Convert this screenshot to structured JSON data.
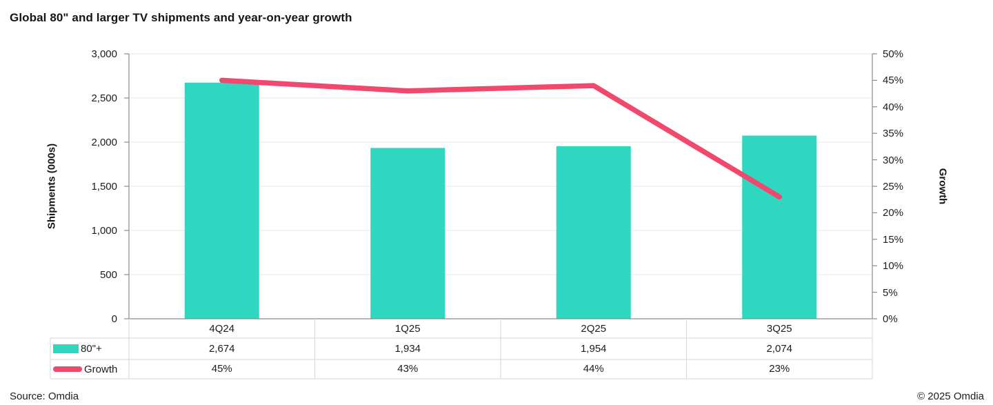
{
  "title": "Global 80\" and larger TV shipments and year-on-year growth",
  "footer": {
    "source": "Source: Omdia",
    "copyright": "© 2025 Omdia"
  },
  "colors": {
    "bar": "#2FD6C0",
    "line": "#F1496E",
    "grid": "#E7E7E7",
    "axis": "#8A8A8A",
    "table_border": "#D6D6D6",
    "text": "#1c1c1c"
  },
  "chart_data": {
    "type": "bar",
    "subtype": "combo-bar-line-dual-axis",
    "title": "Global 80\" and larger TV shipments and year-on-year growth",
    "categories": [
      "4Q24",
      "1Q25",
      "2Q25",
      "3Q25"
    ],
    "series": [
      {
        "name": "80\"+",
        "type": "bar",
        "axis": "left",
        "values": [
          2674,
          1934,
          1954,
          2074
        ],
        "display": [
          "2,674",
          "1,934",
          "1,954",
          "2,074"
        ],
        "color": "#2FD6C0"
      },
      {
        "name": "Growth",
        "type": "line",
        "axis": "right",
        "values": [
          45,
          43,
          44,
          23
        ],
        "display": [
          "45%",
          "43%",
          "44%",
          "23%"
        ],
        "color": "#F1496E"
      }
    ],
    "left_axis": {
      "title": "Shipments (000s)",
      "min": 0,
      "max": 3000,
      "step": 500,
      "tick_labels": [
        "0",
        "500",
        "1,000",
        "1,500",
        "2,000",
        "2,500",
        "3,000"
      ]
    },
    "right_axis": {
      "title": "Growth",
      "min": 0,
      "max": 50,
      "step": 5,
      "tick_labels": [
        "0%",
        "5%",
        "10%",
        "15%",
        "20%",
        "25%",
        "30%",
        "35%",
        "40%",
        "45%",
        "50%"
      ]
    },
    "grid": "horizontal",
    "legend_position": "data-table-left"
  }
}
